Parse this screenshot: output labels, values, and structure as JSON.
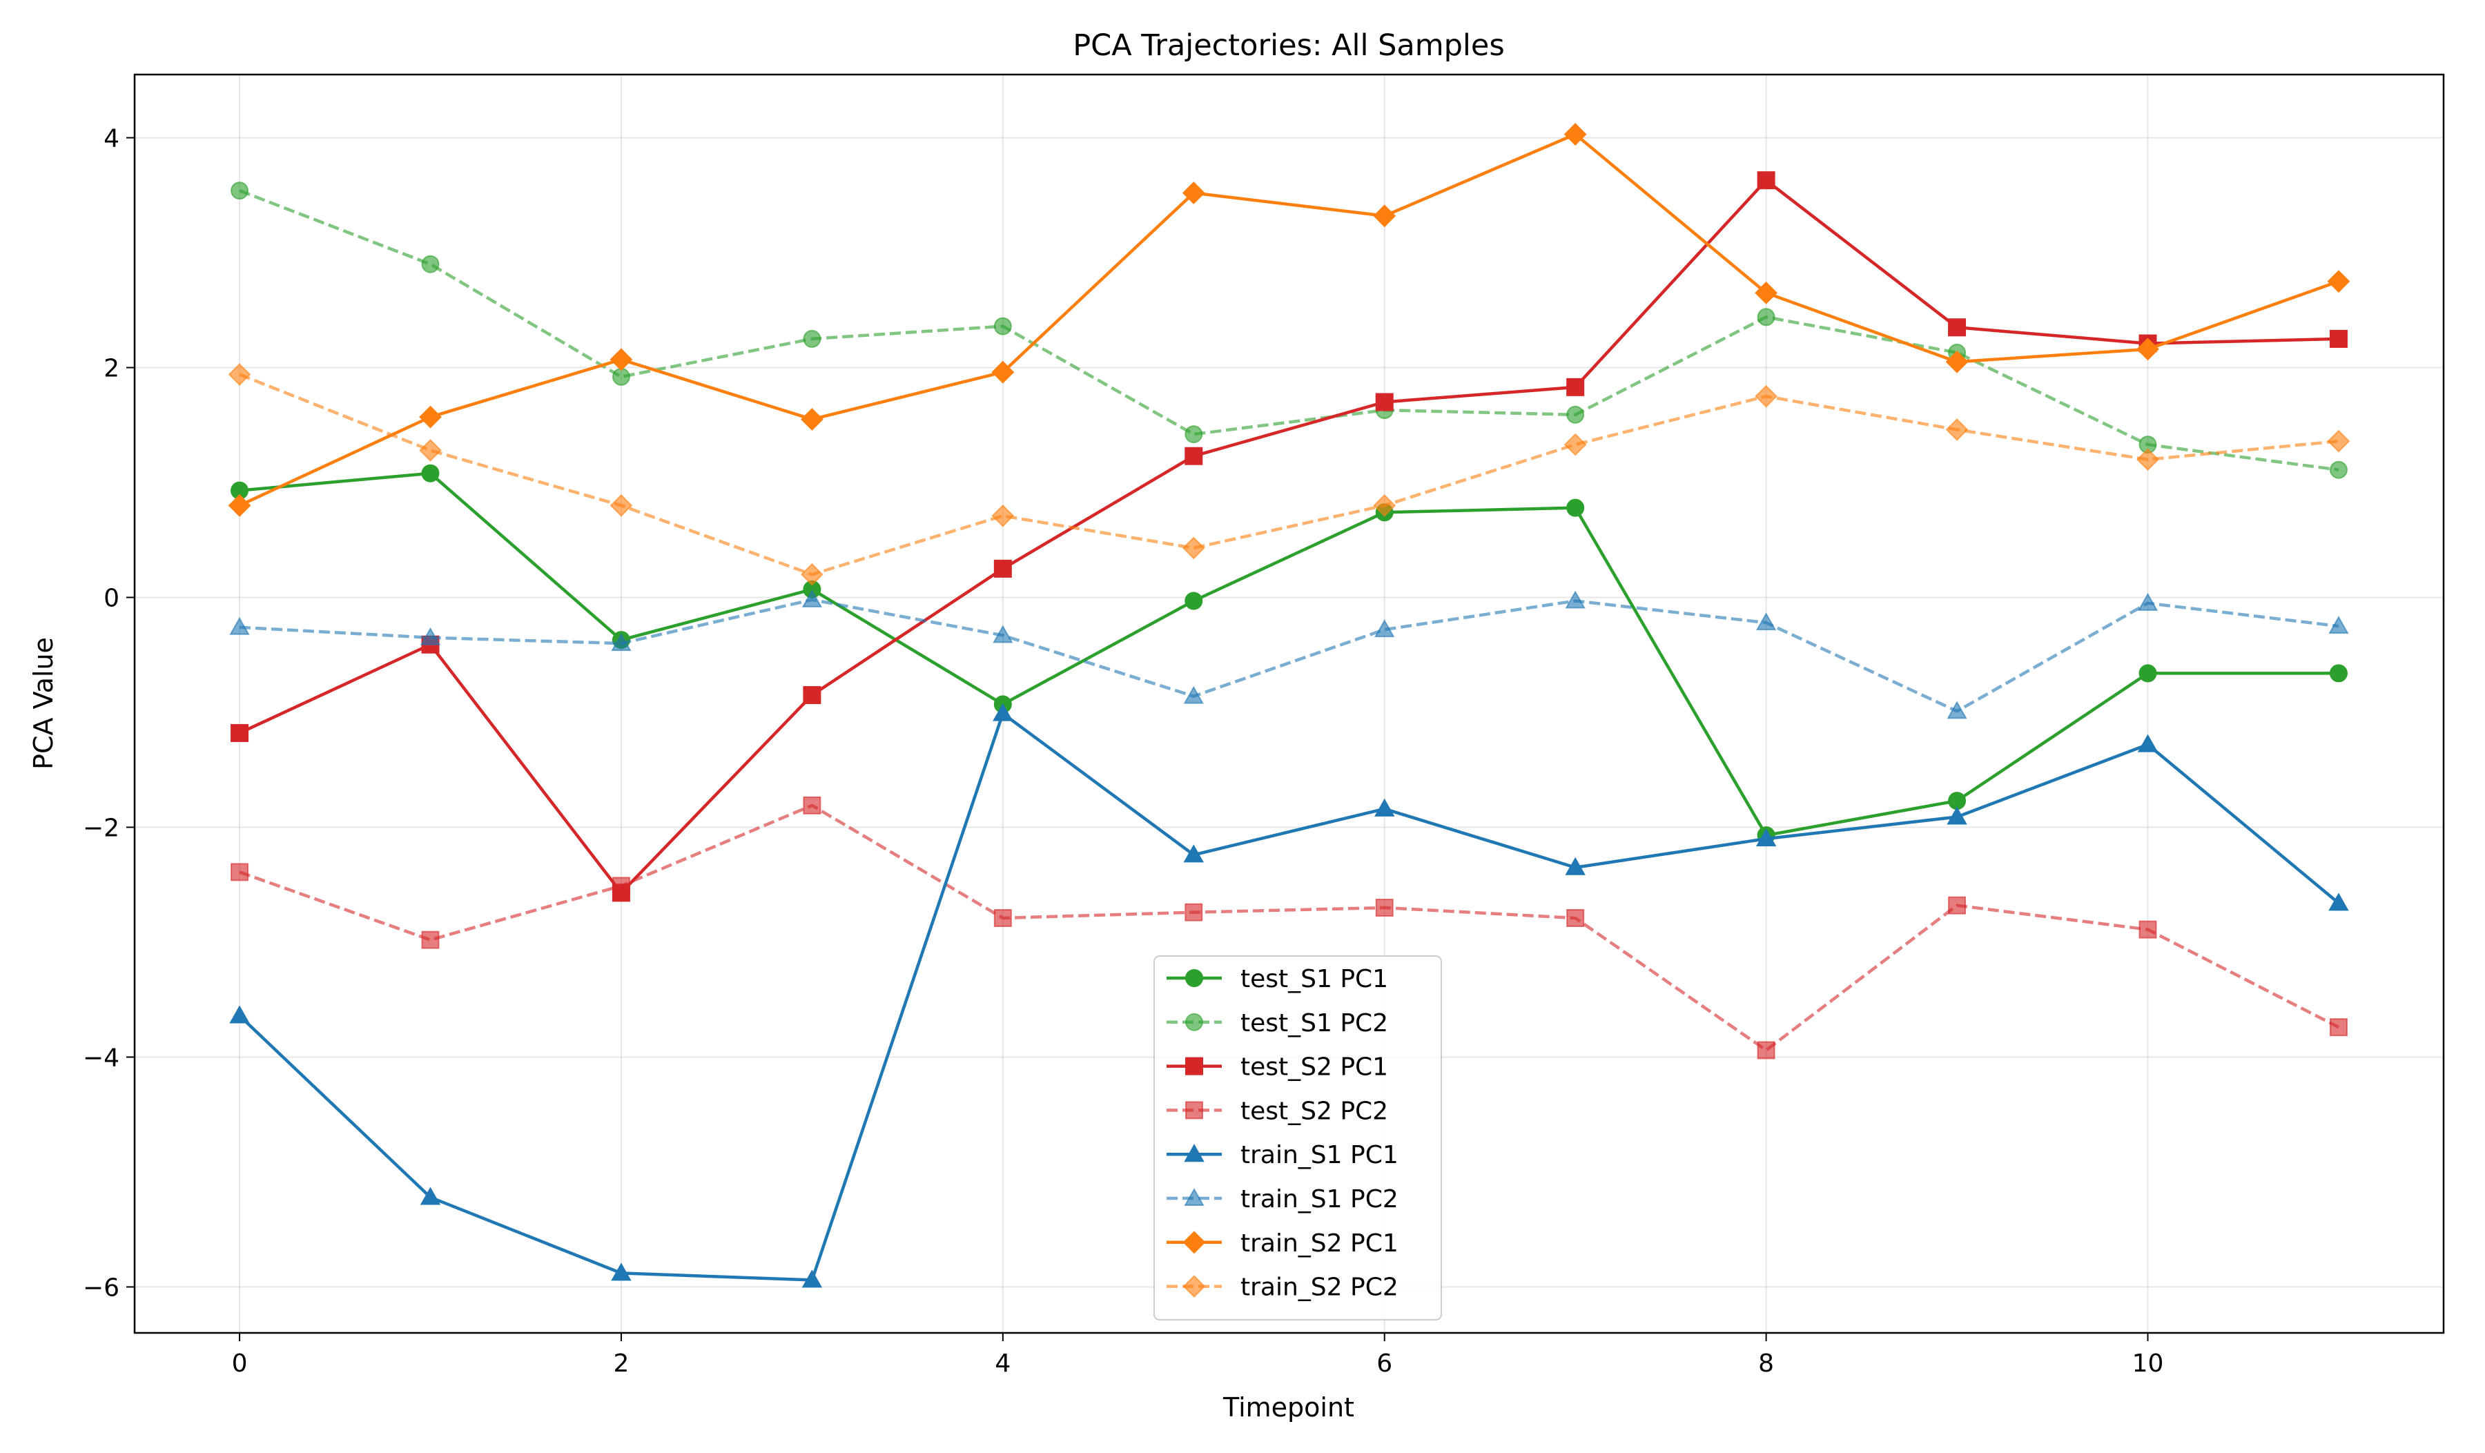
{
  "chart_data": {
    "type": "line",
    "title": "PCA Trajectories: All Samples",
    "xlabel": "Timepoint",
    "ylabel": "PCA Value",
    "xlim": [
      -0.55,
      11.55
    ],
    "ylim": [
      -6.4,
      4.55
    ],
    "xticks": [
      0,
      2,
      4,
      6,
      8,
      10
    ],
    "yticks": [
      -6,
      -4,
      -2,
      0,
      2,
      4
    ],
    "grid": true,
    "legend_position": "bottom-center",
    "x": [
      0,
      1,
      2,
      3,
      4,
      5,
      6,
      7,
      8,
      9,
      10,
      11
    ],
    "series": [
      {
        "name": "test_S1 PC1",
        "color": "#2ca02c",
        "style": "solid",
        "marker": "circle",
        "alpha": 1.0,
        "values": [
          0.93,
          1.08,
          -0.37,
          0.07,
          -0.93,
          -0.03,
          0.74,
          0.78,
          -2.07,
          -1.77,
          -0.66,
          -0.66
        ]
      },
      {
        "name": "test_S1 PC2",
        "color": "#2ca02c",
        "style": "dashed",
        "marker": "circle",
        "alpha": 0.6,
        "values": [
          3.54,
          2.9,
          1.92,
          2.25,
          2.36,
          1.42,
          1.63,
          1.59,
          2.44,
          2.13,
          1.33,
          1.11
        ]
      },
      {
        "name": "test_S2 PC1",
        "color": "#d62728",
        "style": "solid",
        "marker": "square",
        "alpha": 1.0,
        "values": [
          -1.18,
          -0.41,
          -2.57,
          -0.85,
          0.25,
          1.23,
          1.7,
          1.83,
          3.63,
          2.35,
          2.21,
          2.25
        ]
      },
      {
        "name": "test_S2 PC2",
        "color": "#d62728",
        "style": "dashed",
        "marker": "square",
        "alpha": 0.6,
        "values": [
          -2.39,
          -2.98,
          -2.51,
          -1.81,
          -2.79,
          -2.74,
          -2.7,
          -2.79,
          -3.94,
          -2.68,
          -2.89,
          -3.74
        ]
      },
      {
        "name": "train_S1 PC1",
        "color": "#1f77b4",
        "style": "solid",
        "marker": "triangle",
        "alpha": 1.0,
        "values": [
          -3.64,
          -5.22,
          -5.88,
          -5.94,
          -1.01,
          -2.24,
          -1.84,
          -2.35,
          -2.1,
          -1.91,
          -1.28,
          -2.66
        ]
      },
      {
        "name": "train_S1 PC2",
        "color": "#1f77b4",
        "style": "dashed",
        "marker": "triangle",
        "alpha": 0.6,
        "values": [
          -0.26,
          -0.35,
          -0.4,
          -0.02,
          -0.33,
          -0.86,
          -0.28,
          -0.03,
          -0.22,
          -0.99,
          -0.05,
          -0.25
        ]
      },
      {
        "name": "train_S2 PC1",
        "color": "#ff7f0e",
        "style": "solid",
        "marker": "diamond",
        "alpha": 1.0,
        "values": [
          0.8,
          1.57,
          2.07,
          1.55,
          1.96,
          3.52,
          3.32,
          4.03,
          2.65,
          2.05,
          2.16,
          2.75
        ]
      },
      {
        "name": "train_S2 PC2",
        "color": "#ff7f0e",
        "style": "dashed",
        "marker": "diamond",
        "alpha": 0.6,
        "values": [
          1.94,
          1.28,
          0.8,
          0.2,
          0.71,
          0.43,
          0.8,
          1.33,
          1.75,
          1.46,
          1.2,
          1.36
        ]
      }
    ]
  }
}
